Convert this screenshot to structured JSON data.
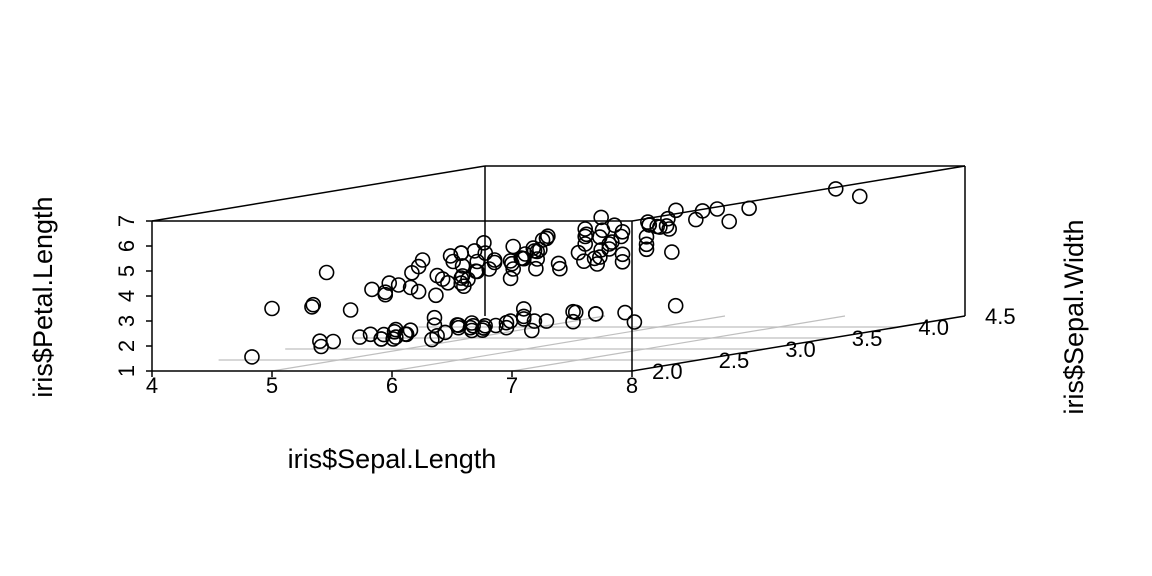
{
  "chart_data": {
    "type": "scatter",
    "variant": "3d-box",
    "xlabel": "iris$Sepal.Length",
    "ylabel": "iris$Sepal.Width",
    "zlabel": "iris$Petal.Length",
    "xlim": [
      4,
      8
    ],
    "ylim": [
      2.0,
      4.5
    ],
    "zlim": [
      1,
      7
    ],
    "x_ticks": [
      "4",
      "5",
      "6",
      "7",
      "8"
    ],
    "y_ticks": [
      "2.0",
      "2.5",
      "3.0",
      "3.5",
      "4.0",
      "4.5"
    ],
    "z_ticks": [
      "1",
      "2",
      "3",
      "4",
      "5",
      "6",
      "7"
    ],
    "grid": true,
    "box": true,
    "series": [
      {
        "points": [
          [
            4.3,
            3.0,
            1.1
          ],
          [
            4.4,
            2.9,
            1.4
          ],
          [
            4.4,
            3.0,
            1.3
          ],
          [
            4.4,
            3.2,
            1.3
          ],
          [
            4.5,
            2.3,
            1.3
          ],
          [
            4.6,
            3.1,
            1.5
          ],
          [
            4.6,
            3.4,
            1.4
          ],
          [
            4.6,
            3.6,
            1.0
          ],
          [
            4.6,
            3.2,
            1.4
          ],
          [
            4.7,
            3.2,
            1.3
          ],
          [
            4.7,
            3.2,
            1.6
          ],
          [
            4.8,
            3.4,
            1.6
          ],
          [
            4.8,
            3.0,
            1.4
          ],
          [
            4.8,
            3.4,
            1.9
          ],
          [
            4.8,
            3.1,
            1.6
          ],
          [
            4.8,
            3.0,
            1.4
          ],
          [
            4.9,
            3.0,
            1.4
          ],
          [
            4.9,
            3.1,
            1.5
          ],
          [
            4.9,
            3.1,
            1.5
          ],
          [
            4.9,
            3.6,
            1.4
          ],
          [
            4.9,
            2.5,
            4.5
          ],
          [
            4.9,
            2.4,
            3.3
          ],
          [
            5.0,
            3.6,
            1.4
          ],
          [
            5.0,
            3.4,
            1.5
          ],
          [
            5.0,
            3.0,
            1.6
          ],
          [
            5.0,
            3.4,
            1.6
          ],
          [
            5.0,
            3.2,
            1.2
          ],
          [
            5.0,
            3.5,
            1.3
          ],
          [
            5.0,
            3.5,
            1.6
          ],
          [
            5.0,
            3.3,
            1.4
          ],
          [
            5.0,
            2.0,
            3.5
          ],
          [
            5.0,
            2.3,
            3.3
          ],
          [
            5.1,
            3.5,
            1.4
          ],
          [
            5.1,
            3.5,
            1.4
          ],
          [
            5.1,
            3.8,
            1.5
          ],
          [
            5.1,
            3.7,
            1.5
          ],
          [
            5.1,
            3.3,
            1.7
          ],
          [
            5.1,
            3.4,
            1.5
          ],
          [
            5.1,
            3.8,
            1.9
          ],
          [
            5.1,
            3.8,
            1.6
          ],
          [
            5.1,
            2.5,
            3.0
          ],
          [
            5.2,
            3.5,
            1.5
          ],
          [
            5.2,
            3.4,
            1.4
          ],
          [
            5.2,
            4.1,
            1.5
          ],
          [
            5.2,
            2.7,
            3.9
          ],
          [
            5.3,
            3.7,
            1.5
          ],
          [
            5.4,
            3.9,
            1.7
          ],
          [
            5.4,
            3.7,
            1.5
          ],
          [
            5.4,
            3.9,
            1.3
          ],
          [
            5.4,
            3.4,
            1.7
          ],
          [
            5.4,
            3.4,
            1.5
          ],
          [
            5.4,
            3.0,
            4.5
          ],
          [
            5.5,
            4.2,
            1.4
          ],
          [
            5.5,
            3.5,
            1.3
          ],
          [
            5.5,
            2.3,
            4.0
          ],
          [
            5.5,
            2.4,
            3.8
          ],
          [
            5.5,
            2.4,
            3.7
          ],
          [
            5.5,
            2.5,
            4.0
          ],
          [
            5.5,
            2.6,
            4.4
          ],
          [
            5.6,
            2.9,
            3.6
          ],
          [
            5.6,
            3.0,
            4.5
          ],
          [
            5.6,
            2.5,
            3.9
          ],
          [
            5.6,
            3.0,
            4.1
          ],
          [
            5.6,
            2.7,
            4.2
          ],
          [
            5.6,
            2.8,
            4.9
          ],
          [
            5.7,
            4.4,
            1.5
          ],
          [
            5.7,
            3.8,
            1.7
          ],
          [
            5.7,
            3.8,
            1.7
          ],
          [
            5.7,
            2.8,
            4.5
          ],
          [
            5.7,
            2.6,
            3.5
          ],
          [
            5.7,
            3.0,
            4.2
          ],
          [
            5.7,
            2.9,
            4.2
          ],
          [
            5.7,
            2.8,
            4.1
          ],
          [
            5.7,
            2.5,
            5.0
          ],
          [
            5.8,
            4.0,
            1.2
          ],
          [
            5.8,
            2.7,
            4.1
          ],
          [
            5.8,
            2.7,
            3.9
          ],
          [
            5.8,
            2.6,
            4.0
          ],
          [
            5.8,
            2.7,
            5.1
          ],
          [
            5.8,
            2.8,
            5.1
          ],
          [
            5.8,
            2.7,
            5.1
          ],
          [
            5.9,
            3.0,
            4.2
          ],
          [
            5.9,
            3.2,
            4.8
          ],
          [
            5.9,
            3.0,
            5.1
          ],
          [
            6.0,
            2.2,
            4.0
          ],
          [
            6.0,
            2.9,
            4.5
          ],
          [
            6.0,
            2.7,
            5.1
          ],
          [
            6.0,
            3.4,
            4.5
          ],
          [
            6.0,
            2.2,
            5.0
          ],
          [
            6.0,
            3.0,
            4.8
          ],
          [
            6.1,
            2.8,
            4.0
          ],
          [
            6.1,
            2.8,
            4.7
          ],
          [
            6.1,
            2.9,
            4.7
          ],
          [
            6.1,
            3.0,
            4.6
          ],
          [
            6.1,
            3.0,
            4.9
          ],
          [
            6.1,
            2.6,
            5.6
          ],
          [
            6.2,
            2.2,
            4.5
          ],
          [
            6.2,
            2.9,
            4.3
          ],
          [
            6.2,
            2.8,
            4.8
          ],
          [
            6.2,
            3.4,
            5.4
          ],
          [
            6.3,
            3.3,
            4.7
          ],
          [
            6.3,
            2.5,
            4.9
          ],
          [
            6.3,
            2.3,
            4.4
          ],
          [
            6.3,
            3.3,
            6.0
          ],
          [
            6.3,
            2.9,
            5.6
          ],
          [
            6.3,
            2.5,
            5.0
          ],
          [
            6.3,
            2.7,
            4.9
          ],
          [
            6.3,
            2.8,
            5.1
          ],
          [
            6.3,
            3.4,
            5.6
          ],
          [
            6.4,
            3.2,
            4.5
          ],
          [
            6.4,
            2.9,
            4.3
          ],
          [
            6.4,
            3.2,
            5.3
          ],
          [
            6.4,
            2.7,
            5.3
          ],
          [
            6.4,
            2.8,
            5.6
          ],
          [
            6.4,
            2.8,
            5.6
          ],
          [
            6.4,
            3.1,
            5.5
          ],
          [
            6.5,
            2.8,
            4.6
          ],
          [
            6.5,
            3.0,
            5.8
          ],
          [
            6.5,
            3.2,
            5.1
          ],
          [
            6.5,
            3.0,
            5.5
          ],
          [
            6.5,
            3.0,
            5.2
          ],
          [
            6.6,
            2.9,
            4.6
          ],
          [
            6.6,
            3.0,
            4.4
          ],
          [
            6.7,
            3.1,
            4.4
          ],
          [
            6.7,
            3.0,
            5.0
          ],
          [
            6.7,
            3.1,
            4.7
          ],
          [
            6.7,
            2.5,
            5.8
          ],
          [
            6.7,
            3.3,
            5.7
          ],
          [
            6.7,
            3.1,
            5.6
          ],
          [
            6.7,
            3.3,
            5.7
          ],
          [
            6.7,
            3.0,
            5.2
          ],
          [
            6.8,
            2.8,
            4.8
          ],
          [
            6.8,
            3.0,
            5.5
          ],
          [
            6.8,
            3.2,
            5.9
          ],
          [
            6.9,
            3.1,
            4.9
          ],
          [
            6.9,
            3.2,
            5.7
          ],
          [
            6.9,
            3.1,
            5.4
          ],
          [
            6.9,
            3.1,
            5.1
          ],
          [
            7.0,
            3.2,
            4.7
          ],
          [
            7.1,
            3.0,
            5.9
          ],
          [
            7.2,
            3.6,
            6.1
          ],
          [
            7.2,
            3.2,
            6.0
          ],
          [
            7.2,
            3.0,
            5.8
          ],
          [
            7.3,
            2.9,
            6.3
          ],
          [
            7.4,
            2.8,
            6.1
          ],
          [
            7.6,
            3.0,
            6.6
          ],
          [
            7.7,
            3.8,
            6.7
          ],
          [
            7.7,
            2.6,
            6.9
          ],
          [
            7.7,
            2.8,
            6.7
          ],
          [
            7.7,
            3.0,
            6.1
          ],
          [
            7.9,
            3.8,
            6.4
          ]
        ]
      }
    ]
  }
}
